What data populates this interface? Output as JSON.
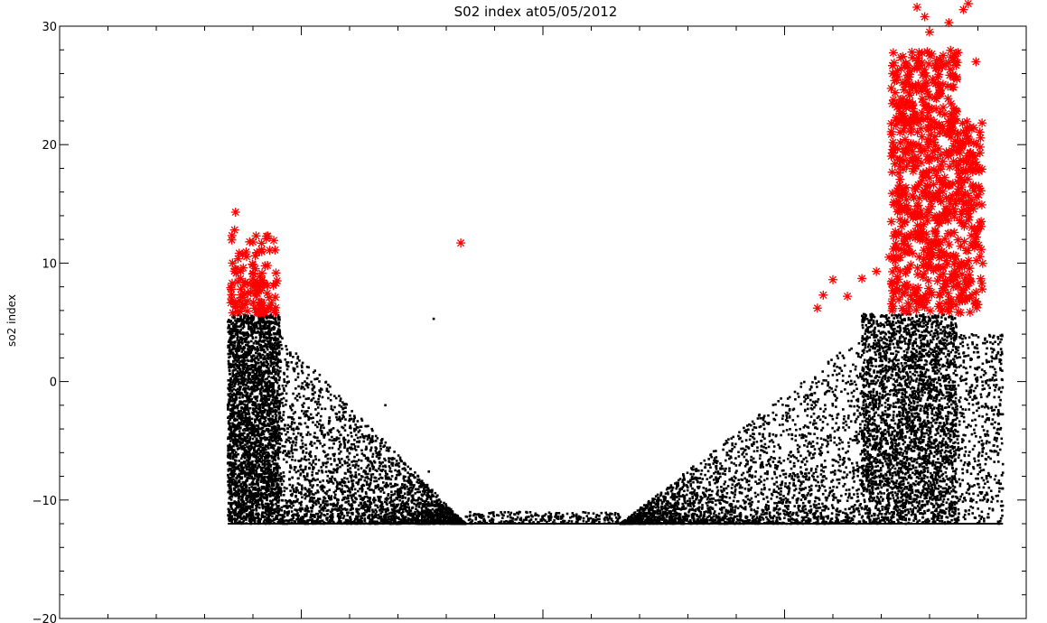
{
  "chart_data": {
    "type": "scatter",
    "title": "S02 index at05/05/2012",
    "ylabel": "so2 index",
    "xlabel": "",
    "ylim": [
      -20,
      30
    ],
    "xlim": [
      0,
      1000
    ],
    "y_ticks": [
      -20,
      -10,
      0,
      10,
      20,
      30
    ],
    "y_tick_labels": [
      "−20",
      "−10",
      "0",
      "10",
      "20",
      "30"
    ],
    "x_tick_labels": [],
    "x_major_ticks": [
      0,
      250,
      500,
      750,
      1000
    ],
    "grid": false,
    "legend": "none",
    "threshold": 5.7,
    "floor": -12,
    "series": [
      {
        "marker": "dot",
        "color": "#000000",
        "clusters": [
          {
            "x": [
              174,
              228
            ],
            "y": [
              -12,
              5.7
            ],
            "count": 3200
          },
          {
            "x": [
              228,
              420
            ],
            "y": [
              -12,
              4
            ],
            "count": 2600,
            "decay": true,
            "direction": "right"
          },
          {
            "x": [
              420,
              580
            ],
            "y": [
              -12,
              -11
            ],
            "count": 250
          },
          {
            "x": [
              580,
              830
            ],
            "y": [
              -12,
              4
            ],
            "count": 2400,
            "decay": true,
            "direction": "left"
          },
          {
            "x": [
              830,
              928
            ],
            "y": [
              -12,
              5.7
            ],
            "count": 3400
          },
          {
            "x": [
              928,
              976
            ],
            "y": [
              -12,
              4
            ],
            "count": 500
          }
        ],
        "points": [
          {
            "x": 387,
            "y": 5.3
          },
          {
            "x": 382,
            "y": -7.6
          },
          {
            "x": 337,
            "y": -2
          },
          {
            "x": 305,
            "y": -4
          }
        ]
      },
      {
        "marker": "asterisk",
        "color": "#ff0000",
        "clusters": [
          {
            "x": [
              177,
              225
            ],
            "y": [
              5.8,
              12.5
            ],
            "count": 120,
            "decay": true
          },
          {
            "x": [
              860,
              930
            ],
            "y": [
              5.8,
              28
            ],
            "count": 650
          },
          {
            "x": [
              930,
              955
            ],
            "y": [
              5.8,
              22
            ],
            "count": 160
          }
        ],
        "points": [
          {
            "x": 182,
            "y": 14.3
          },
          {
            "x": 181,
            "y": 12.8
          },
          {
            "x": 415,
            "y": 11.7
          },
          {
            "x": 225,
            "y": 8.5
          },
          {
            "x": 215,
            "y": 9.8
          },
          {
            "x": 784,
            "y": 6.2
          },
          {
            "x": 790,
            "y": 7.3
          },
          {
            "x": 800,
            "y": 8.6
          },
          {
            "x": 815,
            "y": 7.2
          },
          {
            "x": 830,
            "y": 8.7
          },
          {
            "x": 845,
            "y": 9.3
          },
          {
            "x": 858,
            "y": 10.5
          },
          {
            "x": 868,
            "y": 14.5
          },
          {
            "x": 877,
            "y": 25.5
          },
          {
            "x": 887,
            "y": 31.6
          },
          {
            "x": 895,
            "y": 30.8
          },
          {
            "x": 900,
            "y": 29.5
          },
          {
            "x": 920,
            "y": 30.3
          },
          {
            "x": 935,
            "y": 31.4
          },
          {
            "x": 940,
            "y": 31.9
          },
          {
            "x": 948,
            "y": 27
          },
          {
            "x": 952,
            "y": 18
          },
          {
            "x": 950,
            "y": 6.5
          }
        ]
      }
    ]
  }
}
